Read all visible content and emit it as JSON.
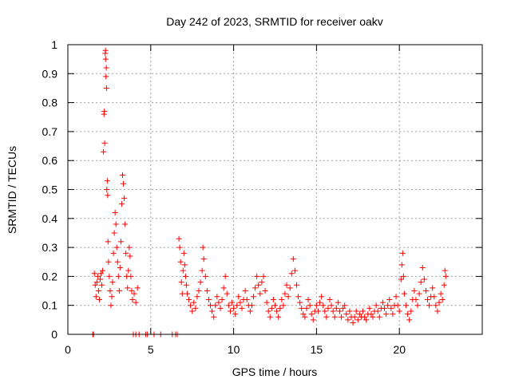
{
  "chart_data": {
    "type": "scatter",
    "title": "Day 242 of 2023, SRMTID for receiver oakv",
    "xlabel": "GPS time / hours",
    "ylabel": "SRMTID / TECUs",
    "xlim": [
      0,
      25
    ],
    "ylim": [
      0,
      1
    ],
    "xticks": [
      0,
      5,
      10,
      15,
      20
    ],
    "yticks": [
      0,
      0.1,
      0.2,
      0.3,
      0.4,
      0.5,
      0.6,
      0.7,
      0.8,
      0.9,
      1
    ],
    "grid": true,
    "marker": "+",
    "color": "#ff0000",
    "series": [
      {
        "name": "SRMTID",
        "points": [
          [
            1.5,
            0.0
          ],
          [
            1.55,
            0.0
          ],
          [
            1.6,
            0.21
          ],
          [
            1.65,
            0.17
          ],
          [
            1.7,
            0.13
          ],
          [
            1.75,
            0.18
          ],
          [
            1.8,
            0.2
          ],
          [
            1.85,
            0.15
          ],
          [
            1.9,
            0.12
          ],
          [
            1.95,
            0.19
          ],
          [
            2.0,
            0.21
          ],
          [
            2.05,
            0.17
          ],
          [
            2.1,
            0.22
          ],
          [
            2.15,
            0.63
          ],
          [
            2.18,
            0.76
          ],
          [
            2.2,
            0.77
          ],
          [
            2.22,
            0.66
          ],
          [
            2.25,
            0.97
          ],
          [
            2.27,
            0.98
          ],
          [
            2.28,
            0.95
          ],
          [
            2.3,
            0.89
          ],
          [
            2.32,
            0.92
          ],
          [
            2.33,
            0.85
          ],
          [
            2.35,
            0.5
          ],
          [
            2.38,
            0.53
          ],
          [
            2.4,
            0.48
          ],
          [
            2.42,
            0.32
          ],
          [
            2.45,
            0.25
          ],
          [
            2.5,
            0.2
          ],
          [
            2.55,
            0.15
          ],
          [
            2.6,
            0.1
          ],
          [
            2.65,
            0.13
          ],
          [
            2.7,
            0.18
          ],
          [
            2.75,
            0.28
          ],
          [
            2.8,
            0.35
          ],
          [
            2.85,
            0.42
          ],
          [
            2.9,
            0.38
          ],
          [
            2.95,
            0.3
          ],
          [
            3.0,
            0.25
          ],
          [
            3.05,
            0.2
          ],
          [
            3.1,
            0.15
          ],
          [
            3.15,
            0.23
          ],
          [
            3.2,
            0.32
          ],
          [
            3.25,
            0.45
          ],
          [
            3.3,
            0.55
          ],
          [
            3.35,
            0.52
          ],
          [
            3.4,
            0.47
          ],
          [
            3.45,
            0.38
          ],
          [
            3.5,
            0.28
          ],
          [
            3.55,
            0.2
          ],
          [
            3.6,
            0.16
          ],
          [
            3.65,
            0.22
          ],
          [
            3.7,
            0.3
          ],
          [
            3.75,
            0.27
          ],
          [
            3.8,
            0.2
          ],
          [
            3.85,
            0.15
          ],
          [
            3.9,
            0.12
          ],
          [
            4.0,
            0.14
          ],
          [
            4.1,
            0.11
          ],
          [
            4.2,
            0.16
          ],
          [
            3.95,
            0.0
          ],
          [
            4.1,
            0.0
          ],
          [
            4.3,
            0.0
          ],
          [
            4.7,
            0.0
          ],
          [
            4.8,
            0.0
          ],
          [
            5.2,
            0.0
          ],
          [
            5.6,
            0.0
          ],
          [
            6.3,
            0.0
          ],
          [
            6.5,
            0.0
          ],
          [
            6.6,
            0.0
          ],
          [
            6.7,
            0.33
          ],
          [
            6.75,
            0.3
          ],
          [
            6.8,
            0.25
          ],
          [
            6.85,
            0.18
          ],
          [
            6.9,
            0.14
          ],
          [
            6.95,
            0.22
          ],
          [
            7.0,
            0.28
          ],
          [
            7.05,
            0.24
          ],
          [
            7.1,
            0.2
          ],
          [
            7.15,
            0.17
          ],
          [
            7.2,
            0.14
          ],
          [
            7.3,
            0.12
          ],
          [
            7.4,
            0.1
          ],
          [
            7.5,
            0.08
          ],
          [
            7.6,
            0.11
          ],
          [
            7.7,
            0.09
          ],
          [
            7.8,
            0.13
          ],
          [
            7.9,
            0.15
          ],
          [
            8.0,
            0.18
          ],
          [
            8.1,
            0.22
          ],
          [
            8.15,
            0.3
          ],
          [
            8.2,
            0.26
          ],
          [
            8.3,
            0.2
          ],
          [
            8.4,
            0.15
          ],
          [
            8.5,
            0.12
          ],
          [
            8.6,
            0.1
          ],
          [
            8.7,
            0.08
          ],
          [
            8.8,
            0.06
          ],
          [
            8.9,
            0.1
          ],
          [
            9.0,
            0.13
          ],
          [
            9.1,
            0.11
          ],
          [
            9.2,
            0.09
          ],
          [
            9.3,
            0.12
          ],
          [
            9.4,
            0.16
          ],
          [
            9.5,
            0.2
          ],
          [
            9.6,
            0.14
          ],
          [
            9.7,
            0.1
          ],
          [
            9.8,
            0.08
          ],
          [
            9.9,
            0.11
          ],
          [
            10.0,
            0.09
          ],
          [
            10.1,
            0.07
          ],
          [
            10.2,
            0.1
          ],
          [
            10.3,
            0.13
          ],
          [
            10.4,
            0.11
          ],
          [
            10.5,
            0.09
          ],
          [
            10.6,
            0.12
          ],
          [
            10.7,
            0.15
          ],
          [
            10.8,
            0.12
          ],
          [
            10.9,
            0.1
          ],
          [
            11.0,
            0.08
          ],
          [
            11.1,
            0.1
          ],
          [
            11.2,
            0.13
          ],
          [
            11.3,
            0.16
          ],
          [
            11.4,
            0.2
          ],
          [
            11.5,
            0.17
          ],
          [
            11.6,
            0.14
          ],
          [
            11.7,
            0.18
          ],
          [
            11.8,
            0.2
          ],
          [
            11.9,
            0.15
          ],
          [
            12.0,
            0.11
          ],
          [
            12.1,
            0.08
          ],
          [
            12.2,
            0.06
          ],
          [
            12.3,
            0.09
          ],
          [
            12.4,
            0.12
          ],
          [
            12.5,
            0.1
          ],
          [
            12.6,
            0.08
          ],
          [
            12.7,
            0.06
          ],
          [
            12.8,
            0.09
          ],
          [
            12.9,
            0.12
          ],
          [
            13.0,
            0.1
          ],
          [
            13.1,
            0.14
          ],
          [
            13.2,
            0.17
          ],
          [
            13.3,
            0.13
          ],
          [
            13.4,
            0.16
          ],
          [
            13.5,
            0.21
          ],
          [
            13.6,
            0.26
          ],
          [
            13.7,
            0.22
          ],
          [
            13.8,
            0.17
          ],
          [
            13.9,
            0.13
          ],
          [
            14.0,
            0.11
          ],
          [
            14.1,
            0.09
          ],
          [
            14.2,
            0.07
          ],
          [
            14.3,
            0.06
          ],
          [
            14.4,
            0.09
          ],
          [
            14.5,
            0.12
          ],
          [
            14.6,
            0.1
          ],
          [
            14.7,
            0.07
          ],
          [
            14.8,
            0.05
          ],
          [
            14.9,
            0.08
          ],
          [
            15.0,
            0.1
          ],
          [
            15.1,
            0.08
          ],
          [
            15.2,
            0.11
          ],
          [
            15.3,
            0.13
          ],
          [
            15.4,
            0.1
          ],
          [
            15.5,
            0.08
          ],
          [
            15.6,
            0.06
          ],
          [
            15.7,
            0.09
          ],
          [
            15.8,
            0.12
          ],
          [
            15.9,
            0.1
          ],
          [
            16.0,
            0.08
          ],
          [
            16.1,
            0.06
          ],
          [
            16.2,
            0.09
          ],
          [
            16.3,
            0.11
          ],
          [
            16.4,
            0.08
          ],
          [
            16.5,
            0.06
          ],
          [
            16.6,
            0.09
          ],
          [
            16.7,
            0.1
          ],
          [
            16.8,
            0.07
          ],
          [
            16.9,
            0.05
          ],
          [
            17.0,
            0.08
          ],
          [
            17.1,
            0.06
          ],
          [
            17.2,
            0.04
          ],
          [
            17.3,
            0.06
          ],
          [
            17.4,
            0.08
          ],
          [
            17.5,
            0.05
          ],
          [
            17.6,
            0.07
          ],
          [
            17.7,
            0.06
          ],
          [
            17.8,
            0.08
          ],
          [
            17.9,
            0.06
          ],
          [
            18.0,
            0.05
          ],
          [
            18.1,
            0.07
          ],
          [
            18.2,
            0.09
          ],
          [
            18.3,
            0.07
          ],
          [
            18.4,
            0.06
          ],
          [
            18.5,
            0.08
          ],
          [
            18.6,
            0.1
          ],
          [
            18.7,
            0.08
          ],
          [
            18.8,
            0.06
          ],
          [
            18.9,
            0.09
          ],
          [
            19.0,
            0.11
          ],
          [
            19.1,
            0.09
          ],
          [
            19.2,
            0.07
          ],
          [
            19.3,
            0.1
          ],
          [
            19.4,
            0.12
          ],
          [
            19.5,
            0.09
          ],
          [
            19.6,
            0.07
          ],
          [
            19.7,
            0.1
          ],
          [
            19.8,
            0.13
          ],
          [
            19.9,
            0.1
          ],
          [
            20.0,
            0.08
          ],
          [
            20.1,
            0.19
          ],
          [
            20.15,
            0.24
          ],
          [
            20.2,
            0.28
          ],
          [
            20.25,
            0.2
          ],
          [
            20.3,
            0.14
          ],
          [
            20.4,
            0.1
          ],
          [
            20.5,
            0.07
          ],
          [
            20.6,
            0.05
          ],
          [
            20.7,
            0.08
          ],
          [
            20.8,
            0.12
          ],
          [
            20.9,
            0.15
          ],
          [
            21.0,
            0.12
          ],
          [
            21.1,
            0.1
          ],
          [
            21.2,
            0.14
          ],
          [
            21.3,
            0.18
          ],
          [
            21.4,
            0.23
          ],
          [
            21.5,
            0.19
          ],
          [
            21.6,
            0.15
          ],
          [
            21.7,
            0.12
          ],
          [
            21.8,
            0.1
          ],
          [
            21.9,
            0.13
          ],
          [
            22.0,
            0.16
          ],
          [
            22.1,
            0.13
          ],
          [
            22.2,
            0.1
          ],
          [
            22.3,
            0.08
          ],
          [
            22.4,
            0.11
          ],
          [
            22.5,
            0.14
          ],
          [
            22.6,
            0.12
          ],
          [
            22.7,
            0.17
          ],
          [
            22.75,
            0.22
          ],
          [
            22.8,
            0.2
          ]
        ]
      }
    ]
  }
}
